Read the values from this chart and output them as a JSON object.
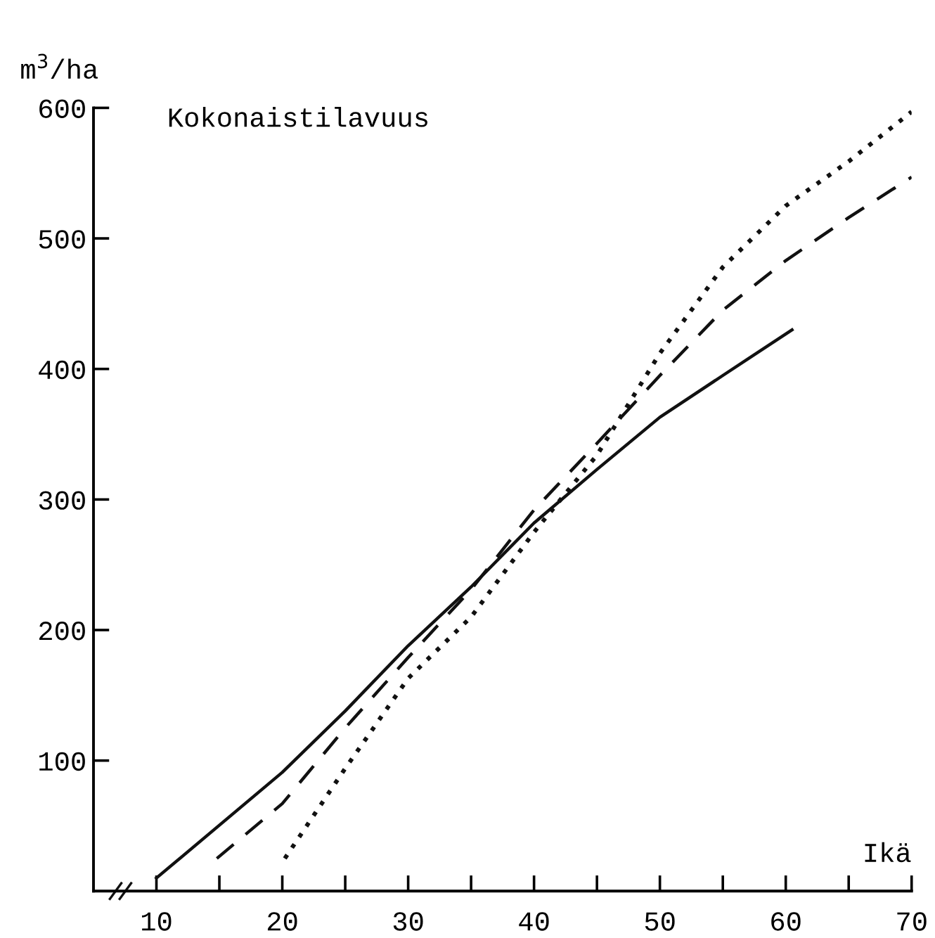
{
  "chart_data": {
    "type": "line",
    "ylabel": "m$^{3}$/ha",
    "xlabel": "Ikä",
    "annotations": [
      "Kokonaistilavuus"
    ],
    "xlim": [
      5,
      70
    ],
    "ylim": [
      0,
      600
    ],
    "xticks": [
      10,
      {
        "value": 15,
        "label": null
      },
      20,
      {
        "value": 25,
        "label": null
      },
      30,
      {
        "value": 35,
        "label": null
      },
      40,
      {
        "value": 45,
        "label": null
      },
      50,
      {
        "value": 55,
        "label": null
      },
      60,
      {
        "value": 65,
        "label": null
      },
      70
    ],
    "yticks": [
      100,
      200,
      300,
      400,
      500,
      600
    ],
    "grid": false,
    "legend": false,
    "series": [
      {
        "color": "#111111",
        "line_style": "solid",
        "x": [
          10,
          20,
          25,
          30,
          35,
          40,
          45,
          50,
          55,
          60.5
        ],
        "values": [
          10,
          91,
          138,
          188,
          233,
          282,
          323,
          363,
          395,
          430
        ]
      },
      {
        "color": "#111111",
        "line_style": "dashed",
        "x": [
          14.8,
          20,
          25,
          30,
          35,
          40,
          45,
          50,
          55,
          60,
          65,
          70
        ],
        "values": [
          25,
          67,
          125,
          179,
          231,
          292,
          343,
          395,
          445,
          483,
          516,
          547
        ]
      },
      {
        "color": "#111111",
        "line_style": "dotted",
        "x": [
          20.2,
          25,
          30,
          35,
          40,
          45,
          50,
          55,
          60,
          65,
          70
        ],
        "values": [
          25,
          94,
          163,
          210,
          275,
          334,
          412,
          478,
          525,
          559,
          597
        ]
      }
    ]
  }
}
